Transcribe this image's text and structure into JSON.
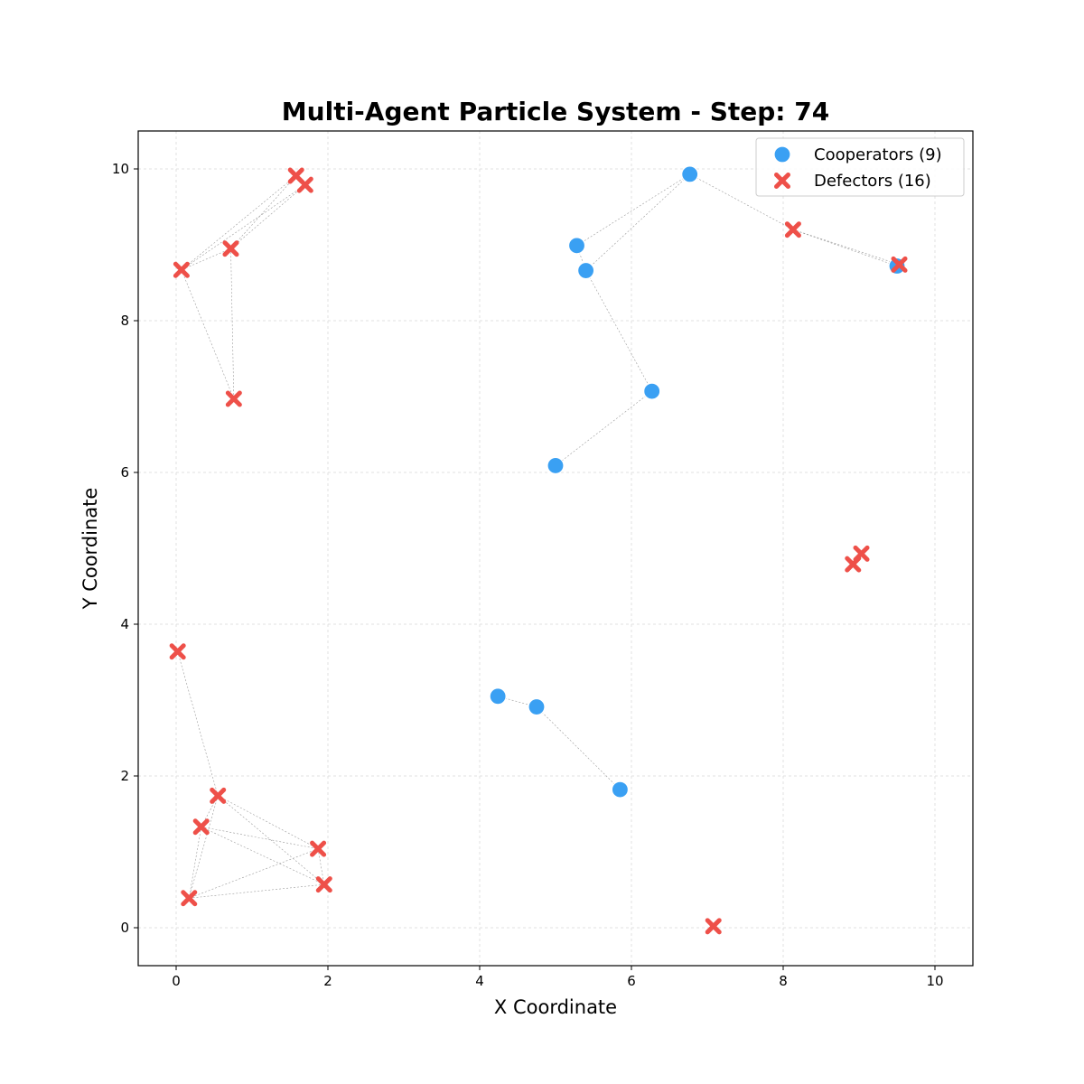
{
  "chart_data": {
    "type": "scatter",
    "title": "Multi-Agent Particle System - Step: 74",
    "xlabel": "X Coordinate",
    "ylabel": "Y Coordinate",
    "xlim": [
      -0.5,
      10.5
    ],
    "ylim": [
      -0.5,
      10.5
    ],
    "xticks": [
      0,
      2,
      4,
      6,
      8,
      10
    ],
    "yticks": [
      0,
      2,
      4,
      6,
      8,
      10
    ],
    "grid": true,
    "legend_position": "top-right",
    "series": [
      {
        "name": "Cooperators (9)",
        "marker": "circle",
        "color": "#3aa0f3",
        "points": [
          [
            6.77,
            9.93
          ],
          [
            5.28,
            8.99
          ],
          [
            5.4,
            8.66
          ],
          [
            6.27,
            7.07
          ],
          [
            5.0,
            6.09
          ],
          [
            4.24,
            3.05
          ],
          [
            4.75,
            2.91
          ],
          [
            5.85,
            1.82
          ],
          [
            9.5,
            8.72
          ]
        ]
      },
      {
        "name": "Defectors (16)",
        "marker": "x",
        "color": "#ee5049",
        "points": [
          [
            1.58,
            9.91
          ],
          [
            1.7,
            9.79
          ],
          [
            0.72,
            8.95
          ],
          [
            0.07,
            8.67
          ],
          [
            0.76,
            6.97
          ],
          [
            8.13,
            9.2
          ],
          [
            9.53,
            8.74
          ],
          [
            9.03,
            4.93
          ],
          [
            8.92,
            4.79
          ],
          [
            0.02,
            3.64
          ],
          [
            0.55,
            1.74
          ],
          [
            0.33,
            1.33
          ],
          [
            1.87,
            1.04
          ],
          [
            1.95,
            0.57
          ],
          [
            0.17,
            0.39
          ],
          [
            7.08,
            0.02
          ]
        ]
      }
    ]
  }
}
